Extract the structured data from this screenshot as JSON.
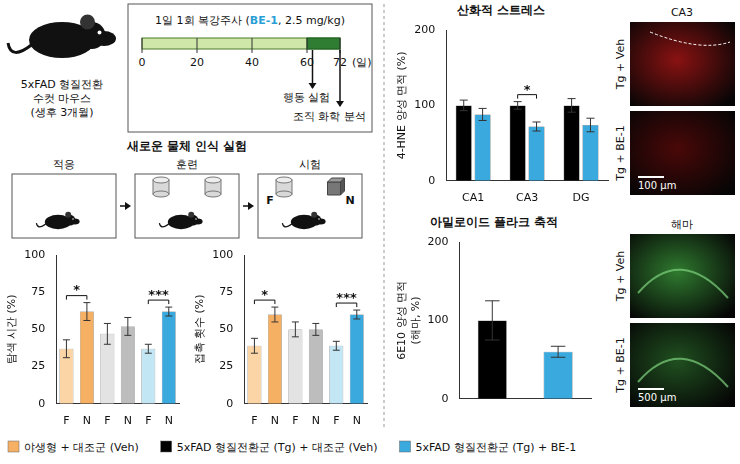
{
  "protocol": {
    "mouse": [
      "5xFAD 형질전환",
      "수컷 마우스",
      "(생후 3개월)"
    ],
    "injection": {
      "prefix": "1일 1회 복강주사 (",
      "drug": "BE-1",
      "suffix": ", 2.5 mg/kg)"
    },
    "timeline": {
      "range": [
        0,
        72
      ],
      "ticks": [
        0,
        20,
        40,
        60,
        72
      ],
      "unit": "(일)",
      "final_phase": [
        60,
        72
      ]
    },
    "events": [
      {
        "day": 62,
        "label": "행동 실험"
      },
      {
        "day": 72,
        "label": "조직 화학 분석"
      }
    ]
  },
  "nor_diagram": {
    "title": "새로운 물체 인식 실험",
    "stages": [
      "적응",
      "훈련",
      "시험"
    ],
    "objects": [
      "F",
      "N"
    ]
  },
  "chart_data": [
    {
      "type": "bar",
      "y_label": "탐색 시간 (%)",
      "categories": [
        "F",
        "N",
        "F",
        "N",
        "F",
        "N"
      ],
      "series": [
        {
          "colors": [
            "#fbd5a5",
            "#f6b064",
            "#e3e3e3",
            "#bdbdbd",
            "#c3e6f5",
            "#3aa9dd"
          ],
          "values": [
            37,
            62,
            47,
            52,
            37,
            62
          ],
          "errors": [
            6,
            6,
            7,
            6,
            3,
            3
          ]
        }
      ],
      "ylim": [
        0,
        100
      ],
      "yticks": [
        0,
        25,
        50,
        75,
        100
      ],
      "grid": false,
      "significance": [
        {
          "from": 0,
          "to": 1,
          "label": "*"
        },
        {
          "from": 4,
          "to": 5,
          "label": "***"
        }
      ]
    },
    {
      "type": "bar",
      "y_label": "접촉 횟수 (%)",
      "categories": [
        "F",
        "N",
        "F",
        "N",
        "F",
        "N"
      ],
      "series": [
        {
          "colors": [
            "#fbd5a5",
            "#f6b064",
            "#e3e3e3",
            "#bdbdbd",
            "#c3e6f5",
            "#3aa9dd"
          ],
          "values": [
            39,
            60,
            50,
            50,
            39,
            60
          ],
          "errors": [
            5,
            5,
            5,
            4,
            3,
            3
          ]
        }
      ],
      "ylim": [
        0,
        100
      ],
      "yticks": [
        0,
        25,
        50,
        75,
        100
      ],
      "grid": false,
      "significance": [
        {
          "from": 0,
          "to": 1,
          "label": "*"
        },
        {
          "from": 4,
          "to": 5,
          "label": "***"
        }
      ]
    },
    {
      "type": "bar",
      "title": "산화적 스트레스",
      "y_label": "4-HNE 양성 면적 (%)",
      "categories": [
        "CA1",
        "CA3",
        "DG"
      ],
      "series": [
        {
          "name": "5xFAD 형질전환군 (Tg) + 대조군 (Veh)",
          "color": "#000000",
          "values": [
            100,
            100,
            100
          ],
          "errors": [
            7,
            5,
            9
          ]
        },
        {
          "name": "5xFAD 형질전환군 (Tg) + BE-1",
          "color": "#3aa9dd",
          "values": [
            88,
            72,
            74
          ],
          "errors": [
            8,
            6,
            9
          ]
        }
      ],
      "ylim": [
        0,
        200
      ],
      "yticks": [
        0,
        100,
        200
      ],
      "grid": false,
      "significance": [
        {
          "category": "CA3",
          "label": "*"
        }
      ]
    },
    {
      "type": "bar",
      "title": "아밀로이드 플라크 축적",
      "y_label": [
        "6E10 양성 면적",
        "(해마, %)"
      ],
      "categories": [
        null,
        null
      ],
      "series": [
        {
          "colors": [
            "#000000",
            "#3aa9dd"
          ],
          "values": [
            100,
            60
          ],
          "errors": [
            25,
            7
          ]
        }
      ],
      "ylim": [
        0,
        200
      ],
      "yticks": [
        0,
        100,
        200
      ],
      "grid": false
    }
  ],
  "images": {
    "oxidative": {
      "region": "CA3",
      "rows": [
        "Tg + Veh",
        "Tg + BE-1"
      ],
      "scale_bar": "100 μm"
    },
    "amyloid": {
      "region": "해마",
      "rows": [
        "Tg + Veh",
        "Tg + BE-1"
      ],
      "scale_bar": "500 μm"
    }
  },
  "figure_legend": {
    "position": "bottom",
    "items": [
      {
        "label": "야생형 + 대조군 (Veh)",
        "color": "#f6b064"
      },
      {
        "label": "5xFAD 형질전환군 (Tg) + 대조군 (Veh)",
        "color": "#000000"
      },
      {
        "label": "5xFAD 형질전환군 (Tg) + BE-1",
        "color": "#3aa9dd"
      }
    ]
  }
}
